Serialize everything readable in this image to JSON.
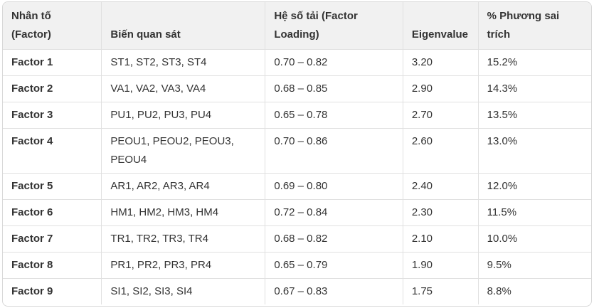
{
  "colors": {
    "header_bg": "#f1f1f1",
    "border": "#e0e0e0",
    "outer_border": "#d8d8d8",
    "text": "#333333",
    "background": "#ffffff"
  },
  "table": {
    "columns": [
      {
        "key": "factor",
        "label": "Nhân tố (Factor)"
      },
      {
        "key": "variables",
        "label": "Biến quan sát"
      },
      {
        "key": "loading",
        "label": "Hệ số tải (Factor Loading)"
      },
      {
        "key": "eigenvalue",
        "label": "Eigenvalue"
      },
      {
        "key": "variance",
        "label": "% Phương sai trích"
      }
    ],
    "rows": [
      {
        "factor": "Factor 1",
        "variables": "ST1, ST2, ST3, ST4",
        "loading": "0.70 – 0.82",
        "eigenvalue": "3.20",
        "variance": "15.2%"
      },
      {
        "factor": "Factor 2",
        "variables": "VA1, VA2, VA3, VA4",
        "loading": "0.68 – 0.85",
        "eigenvalue": "2.90",
        "variance": "14.3%"
      },
      {
        "factor": "Factor 3",
        "variables": "PU1, PU2, PU3, PU4",
        "loading": "0.65 – 0.78",
        "eigenvalue": "2.70",
        "variance": "13.5%"
      },
      {
        "factor": "Factor 4",
        "variables": "PEOU1, PEOU2, PEOU3, PEOU4",
        "loading": "0.70 – 0.86",
        "eigenvalue": "2.60",
        "variance": "13.0%"
      },
      {
        "factor": "Factor 5",
        "variables": "AR1, AR2, AR3, AR4",
        "loading": "0.69 – 0.80",
        "eigenvalue": "2.40",
        "variance": "12.0%"
      },
      {
        "factor": "Factor 6",
        "variables": "HM1, HM2, HM3, HM4",
        "loading": "0.72 – 0.84",
        "eigenvalue": "2.30",
        "variance": "11.5%"
      },
      {
        "factor": "Factor 7",
        "variables": "TR1, TR2, TR3, TR4",
        "loading": "0.68 – 0.82",
        "eigenvalue": "2.10",
        "variance": "10.0%"
      },
      {
        "factor": "Factor 8",
        "variables": "PR1, PR2, PR3, PR4",
        "loading": "0.65 – 0.79",
        "eigenvalue": "1.90",
        "variance": "9.5%"
      },
      {
        "factor": "Factor 9",
        "variables": "SI1, SI2, SI3, SI4",
        "loading": "0.67 – 0.83",
        "eigenvalue": "1.75",
        "variance": "8.8%"
      }
    ]
  }
}
